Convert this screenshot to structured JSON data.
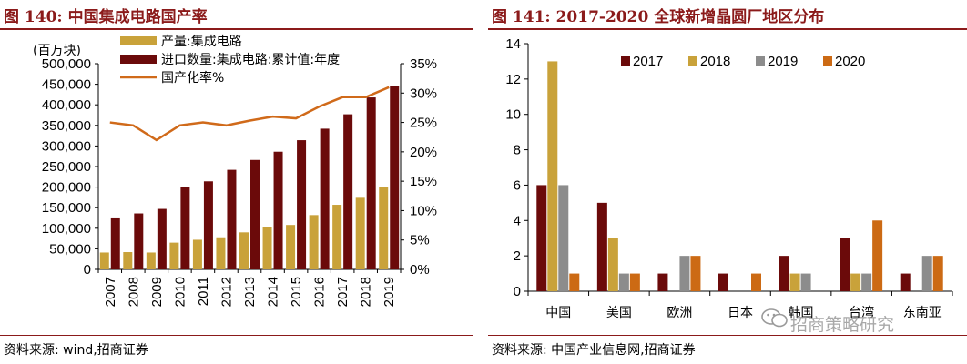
{
  "left": {
    "title": "图 140:  中国集成电路国产率",
    "source": "资料来源:  wind,招商证券",
    "chart_data": {
      "type": "bar-line",
      "title": "中国集成电路国产率",
      "y_unit_label": "(百万块)",
      "categories": [
        "2007",
        "2008",
        "2009",
        "2010",
        "2011",
        "2012",
        "2013",
        "2014",
        "2015",
        "2016",
        "2017",
        "2018",
        "2019"
      ],
      "series": [
        {
          "name": "产量:集成电路",
          "kind": "bar",
          "axis": "left",
          "color": "#c9a23a",
          "values": [
            41000,
            42000,
            41000,
            65000,
            72000,
            78000,
            90000,
            102000,
            108000,
            132000,
            157000,
            174000,
            201000
          ]
        },
        {
          "name": "进口数量:集成电路:累计值:年度",
          "kind": "bar",
          "axis": "left",
          "color": "#6b0a0a",
          "values": [
            124000,
            136000,
            147000,
            201000,
            214000,
            242000,
            266000,
            286000,
            314000,
            342000,
            377000,
            418000,
            445000
          ]
        },
        {
          "name": "国产化率%",
          "kind": "line",
          "axis": "right",
          "color": "#d06a1a",
          "values": [
            25.0,
            24.5,
            22.0,
            24.5,
            25.0,
            24.5,
            25.3,
            26.0,
            25.7,
            27.7,
            29.3,
            29.3,
            31.0
          ]
        }
      ],
      "y_left": {
        "min": 0,
        "max": 500000,
        "step": 50000,
        "ticks": [
          "0",
          "50,000",
          "100,000",
          "150,000",
          "200,000",
          "250,000",
          "300,000",
          "350,000",
          "400,000",
          "450,000",
          "500,000"
        ]
      },
      "y_right": {
        "min": 0,
        "max": 35,
        "step": 5,
        "ticks": [
          "0%",
          "5%",
          "10%",
          "15%",
          "20%",
          "25%",
          "30%",
          "35%"
        ]
      }
    }
  },
  "right": {
    "title": "图 141:  2017-2020 全球新增晶圆厂地区分布",
    "source": "资料来源:  中国产业信息网,招商证券",
    "watermark": "招商策略研究",
    "chart_data": {
      "type": "bar",
      "title": "2017-2020 全球新增晶圆厂地区分布",
      "categories": [
        "中国",
        "美国",
        "欧洲",
        "日本",
        "韩国",
        "台湾",
        "东南亚"
      ],
      "series": [
        {
          "name": "2017",
          "color": "#6b0a0a",
          "values": [
            6,
            5,
            1,
            1,
            2,
            3,
            1
          ]
        },
        {
          "name": "2018",
          "color": "#c9a23a",
          "values": [
            13,
            3,
            0,
            0,
            1,
            1,
            0
          ]
        },
        {
          "name": "2019",
          "color": "#8c8c8c",
          "values": [
            6,
            1,
            2,
            0,
            1,
            1,
            2
          ]
        },
        {
          "name": "2020",
          "color": "#cc6a14",
          "values": [
            1,
            1,
            2,
            1,
            0,
            4,
            2
          ]
        }
      ],
      "y": {
        "min": 0,
        "max": 14,
        "step": 2,
        "ticks": [
          "0",
          "2",
          "4",
          "6",
          "8",
          "10",
          "12",
          "14"
        ]
      },
      "legend_position": "top-center"
    }
  }
}
